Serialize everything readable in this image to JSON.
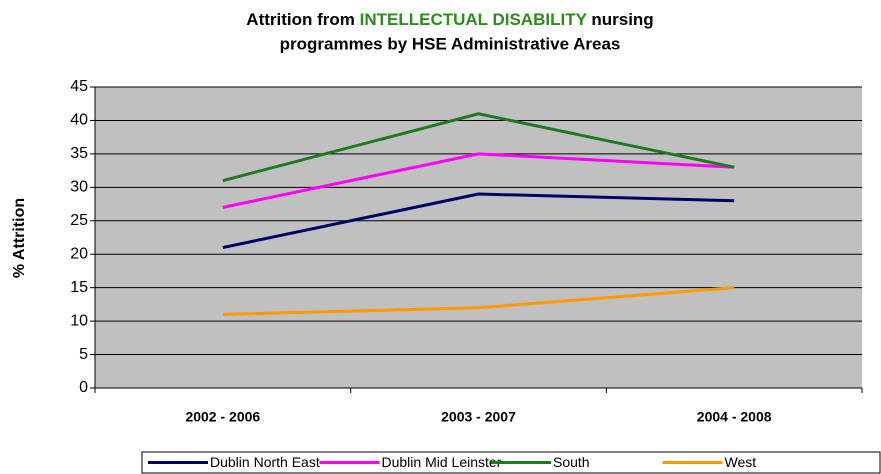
{
  "chart_data": {
    "type": "line",
    "title": [
      "Attrition from",
      "INTELLECTUAL DISABILITY",
      "nursing",
      "programmes by HSE Administrative Areas"
    ],
    "y_label": "% Attrition",
    "categories": [
      "2002 - 2006",
      "2003 - 2007",
      "2004 - 2008"
    ],
    "series": [
      {
        "name": "Dublin North East",
        "color": "#000066",
        "values": [
          21,
          29,
          28
        ]
      },
      {
        "name": "Dublin Mid Leinster",
        "color": "#ff00ff",
        "values": [
          27,
          35,
          33
        ]
      },
      {
        "name": "South",
        "color": "#1f7a1f",
        "values": [
          31,
          41,
          33
        ]
      },
      {
        "name": "West",
        "color": "#ff9900",
        "values": [
          11,
          12,
          15
        ]
      }
    ],
    "ylim": [
      0,
      45
    ],
    "yticks": [
      0,
      5,
      10,
      15,
      20,
      25,
      30,
      35,
      40,
      45
    ],
    "grid": true,
    "plot_background": "#c0c0c0",
    "legend": "bottom"
  }
}
